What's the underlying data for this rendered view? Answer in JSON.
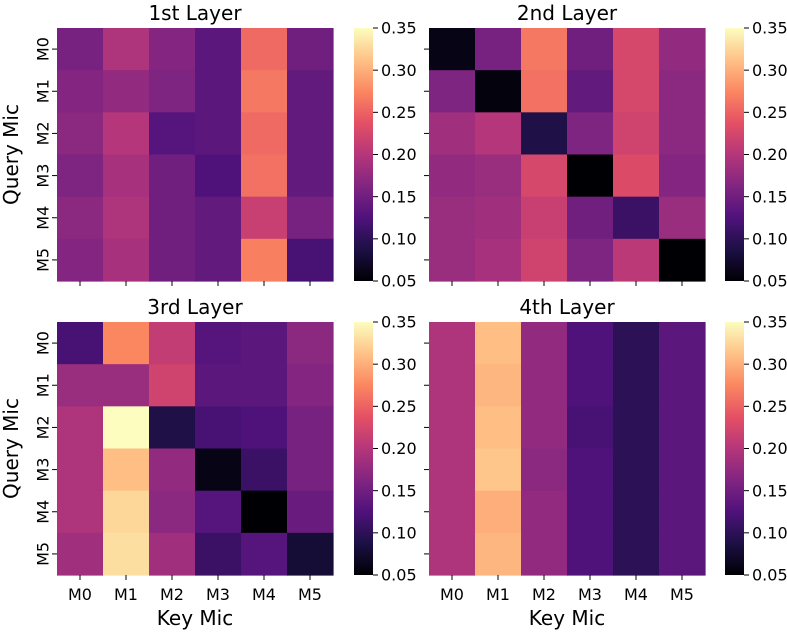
{
  "chart_data": [
    {
      "type": "heatmap",
      "title": "1st Layer",
      "xlabel": "",
      "ylabel": "Query Mic",
      "x_categories": [
        "M0",
        "M1",
        "M2",
        "M3",
        "M4",
        "M5"
      ],
      "y_categories": [
        "M0",
        "M1",
        "M2",
        "M3",
        "M4",
        "M5"
      ],
      "show_x_ticklabels": false,
      "show_y_ticklabels": true,
      "values": [
        [
          0.155,
          0.195,
          0.165,
          0.135,
          0.255,
          0.15
        ],
        [
          0.165,
          0.175,
          0.16,
          0.135,
          0.265,
          0.14
        ],
        [
          0.17,
          0.2,
          0.13,
          0.135,
          0.255,
          0.14
        ],
        [
          0.16,
          0.19,
          0.15,
          0.125,
          0.26,
          0.14
        ],
        [
          0.17,
          0.195,
          0.15,
          0.14,
          0.215,
          0.155
        ],
        [
          0.165,
          0.19,
          0.15,
          0.14,
          0.27,
          0.12
        ]
      ],
      "colorbar": {
        "min": 0.05,
        "max": 0.35,
        "ticks": [
          "0.05",
          "0.10",
          "0.15",
          "0.20",
          "0.25",
          "0.30",
          "0.35"
        ]
      }
    },
    {
      "type": "heatmap",
      "title": "2nd Layer",
      "xlabel": "",
      "ylabel": "",
      "x_categories": [
        "M0",
        "M1",
        "M2",
        "M3",
        "M4",
        "M5"
      ],
      "y_categories": [
        "M0",
        "M1",
        "M2",
        "M3",
        "M4",
        "M5"
      ],
      "show_x_ticklabels": false,
      "show_y_ticklabels": false,
      "values": [
        [
          0.06,
          0.155,
          0.265,
          0.15,
          0.225,
          0.175
        ],
        [
          0.16,
          0.055,
          0.26,
          0.14,
          0.225,
          0.17
        ],
        [
          0.185,
          0.2,
          0.09,
          0.16,
          0.22,
          0.17
        ],
        [
          0.175,
          0.18,
          0.225,
          0.05,
          0.23,
          0.165
        ],
        [
          0.18,
          0.185,
          0.215,
          0.15,
          0.11,
          0.18
        ],
        [
          0.18,
          0.19,
          0.22,
          0.16,
          0.205,
          0.05
        ]
      ],
      "colorbar": {
        "min": 0.05,
        "max": 0.35,
        "ticks": [
          "0.05",
          "0.10",
          "0.15",
          "0.20",
          "0.25",
          "0.30",
          "0.35"
        ]
      }
    },
    {
      "type": "heatmap",
      "title": "3rd Layer",
      "xlabel": "Key Mic",
      "ylabel": "Query Mic",
      "x_categories": [
        "M0",
        "M1",
        "M2",
        "M3",
        "M4",
        "M5"
      ],
      "y_categories": [
        "M0",
        "M1",
        "M2",
        "M3",
        "M4",
        "M5"
      ],
      "show_x_ticklabels": true,
      "show_y_ticklabels": true,
      "values": [
        [
          0.12,
          0.275,
          0.21,
          0.13,
          0.135,
          0.17
        ],
        [
          0.18,
          0.18,
          0.22,
          0.135,
          0.135,
          0.165
        ],
        [
          0.195,
          0.35,
          0.09,
          0.12,
          0.125,
          0.155
        ],
        [
          0.195,
          0.31,
          0.175,
          0.06,
          0.11,
          0.155
        ],
        [
          0.195,
          0.325,
          0.17,
          0.13,
          0.05,
          0.145
        ],
        [
          0.185,
          0.33,
          0.185,
          0.11,
          0.13,
          0.08
        ]
      ],
      "colorbar": {
        "min": 0.05,
        "max": 0.35,
        "ticks": [
          "0.05",
          "0.10",
          "0.15",
          "0.20",
          "0.25",
          "0.30",
          "0.35"
        ]
      }
    },
    {
      "type": "heatmap",
      "title": "4th Layer",
      "xlabel": "Key Mic",
      "ylabel": "",
      "x_categories": [
        "M0",
        "M1",
        "M2",
        "M3",
        "M4",
        "M5"
      ],
      "y_categories": [
        "M0",
        "M1",
        "M2",
        "M3",
        "M4",
        "M5"
      ],
      "show_x_ticklabels": true,
      "show_y_ticklabels": false,
      "values": [
        [
          0.195,
          0.31,
          0.175,
          0.125,
          0.1,
          0.135
        ],
        [
          0.195,
          0.305,
          0.175,
          0.125,
          0.1,
          0.135
        ],
        [
          0.195,
          0.31,
          0.175,
          0.12,
          0.1,
          0.135
        ],
        [
          0.195,
          0.315,
          0.17,
          0.125,
          0.1,
          0.135
        ],
        [
          0.195,
          0.3,
          0.175,
          0.125,
          0.1,
          0.135
        ],
        [
          0.195,
          0.305,
          0.175,
          0.125,
          0.1,
          0.135
        ]
      ],
      "colorbar": {
        "min": 0.05,
        "max": 0.35,
        "ticks": [
          "0.05",
          "0.10",
          "0.15",
          "0.20",
          "0.25",
          "0.30",
          "0.35"
        ]
      }
    }
  ]
}
